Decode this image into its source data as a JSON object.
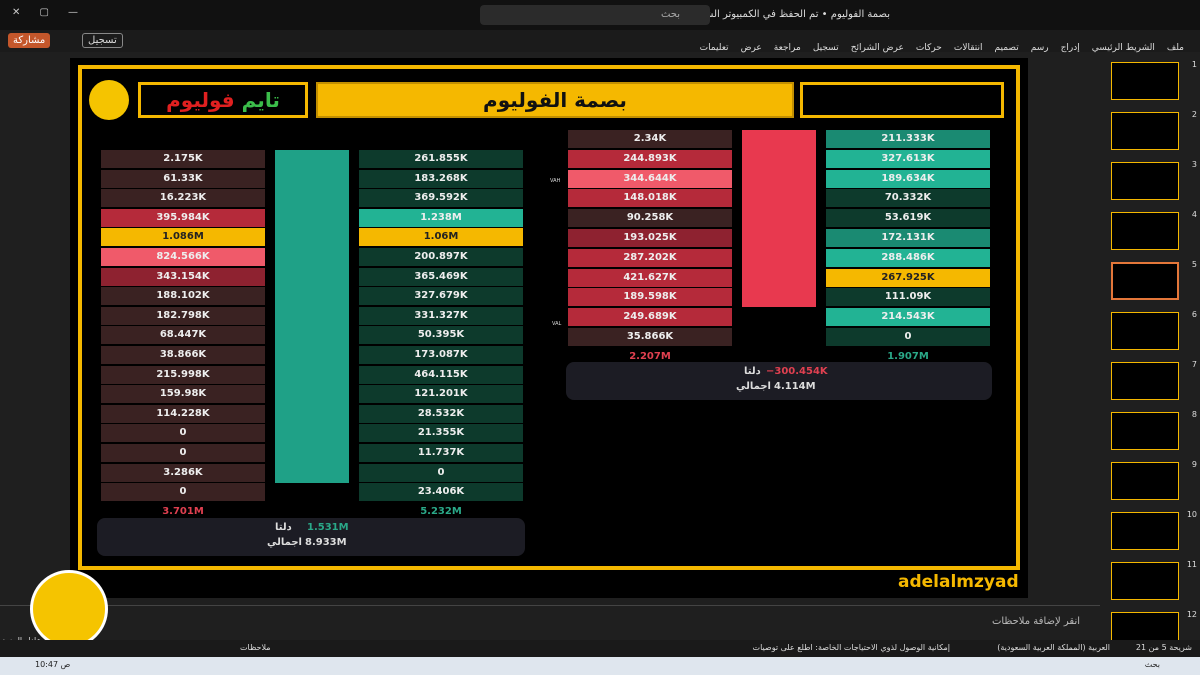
{
  "window": {
    "title": "بصمة الفوليوم • تم الحفظ في الكمبيوتر الشخصي هذا",
    "search": "بحث"
  },
  "ribbon": {
    "tabs": [
      "ملف",
      "الشريط الرئيسي",
      "إدراج",
      "رسم",
      "تصميم",
      "انتقالات",
      "حركات",
      "عرض الشرائح",
      "تسجيل",
      "مراجعة",
      "عرض",
      "تعليمات"
    ],
    "record": "تسجيل",
    "share": "مشاركة"
  },
  "slide": {
    "title": "بصمة الفوليوم",
    "logo_a": "فوليوم",
    "logo_b": "تايم",
    "footer": "adelalmzyad",
    "left": {
      "sell": [
        "2.175K",
        "61.33K",
        "16.223K",
        "395.984K",
        "1.086M",
        "824.566K",
        "343.154K",
        "188.102K",
        "182.798K",
        "68.447K",
        "38.866K",
        "215.998K",
        "159.98K",
        "114.228K",
        "0",
        "0",
        "3.286K",
        "0"
      ],
      "buy": [
        "261.855K",
        "183.268K",
        "369.592K",
        "1.238M",
        "1.06M",
        "200.897K",
        "365.469K",
        "327.679K",
        "331.327K",
        "50.395K",
        "173.087K",
        "464.115K",
        "121.201K",
        "28.532K",
        "21.355K",
        "11.737K",
        "0",
        "23.406K"
      ],
      "sell_total": "3.701M",
      "buy_total": "5.232M",
      "delta_label": "دلتا",
      "delta": "1.531M",
      "total_label": "اجمالي",
      "total": "8.933M"
    },
    "right": {
      "sell": [
        "2.34K",
        "244.893K",
        "344.644K",
        "148.018K",
        "90.258K",
        "193.025K",
        "287.202K",
        "421.627K",
        "189.598K",
        "249.689K",
        "35.866K"
      ],
      "buy": [
        "211.333K",
        "327.613K",
        "189.634K",
        "70.332K",
        "53.619K",
        "172.131K",
        "288.486K",
        "267.925K",
        "111.09K",
        "214.543K",
        "0"
      ],
      "sell_total": "2.207M",
      "buy_total": "1.907M",
      "delta_label": "دلتا",
      "delta": "−300.454K",
      "total_label": "اجمالي",
      "total": "4.114M",
      "vah": "VAH",
      "val": "VAL"
    }
  },
  "notes": "انقر لإضافة ملاحظات",
  "thumbnails": [
    "1",
    "2",
    "3",
    "4",
    "5",
    "6",
    "7",
    "8",
    "9",
    "10",
    "11",
    "12"
  ],
  "webcam": "عادل المزيد",
  "status": {
    "slide": "شريحة 5 من 21",
    "language": "العربية (المملكة العربية السعودية)",
    "accessibility": "إمكانية الوصول لذوي الاحتياجات الخاصة: اطلع على توصيات",
    "notes": "ملاحظات"
  },
  "taskbar": {
    "search": "بحث",
    "time": "10:47 ص"
  }
}
